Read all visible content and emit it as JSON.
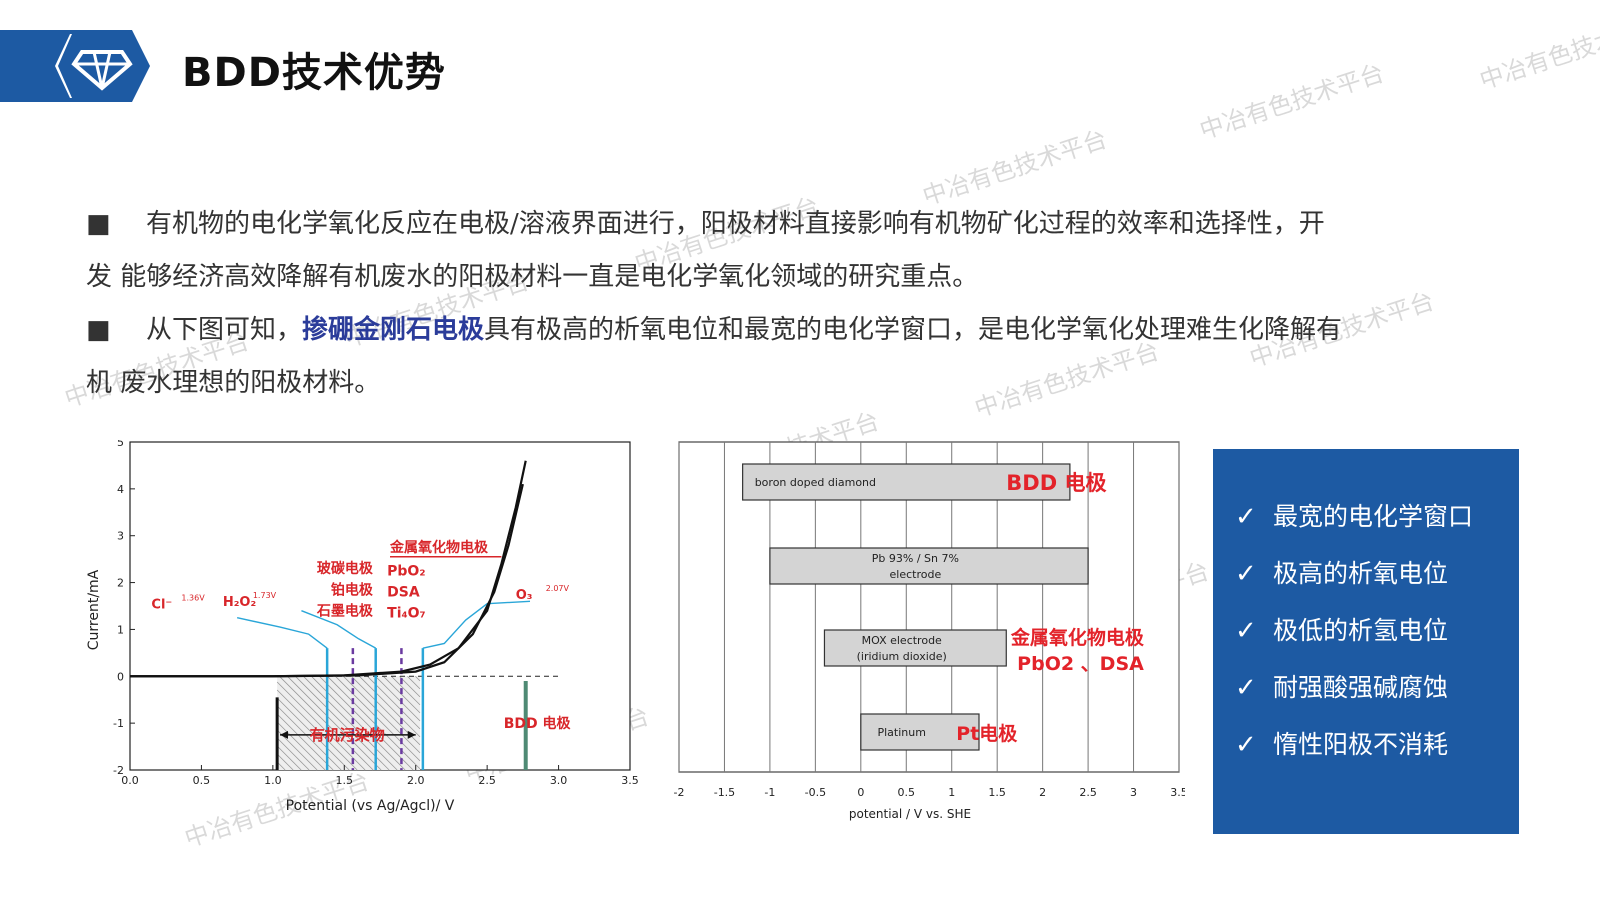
{
  "header": {
    "title": "BDD技术优势",
    "logo_icon": "diamond-logo-icon",
    "accent": "#1d5aa3"
  },
  "watermark": "中冶有色技术平台",
  "paragraphs": [
    {
      "bullet": "■",
      "line1": "有机物的电化学氧化反应在电极/溶液界面进行，阳极材料直接影响有机物矿化过程的效率和选择性，开",
      "line2": "发  能够经济高效降解有机废水的阳极材料一直是电化学氧化领域的研究重点。"
    },
    {
      "bullet": "■",
      "pre": "从下图可知，",
      "highlight": "掺硼金刚石电极",
      "post": "具有极高的析氧电位和最宽的电化学窗口，是电化学氧化处理难生化降解有",
      "line2": "机  废水理想的阳极材料。"
    }
  ],
  "chart_data": [
    {
      "type": "line",
      "xlabel": "Potential (vs Ag/Agcl)/ V",
      "ylabel": "Current/mA",
      "xlim": [
        0.0,
        3.5
      ],
      "ylim": [
        -2,
        5
      ],
      "xticks": [
        "0.0",
        "0.5",
        "1.0",
        "1.5",
        "2.0",
        "2.5",
        "3.0",
        "3.5"
      ],
      "yticks": [
        "-2",
        "-1",
        "0",
        "1",
        "2",
        "3",
        "4",
        "5"
      ],
      "series": [
        {
          "values": [
            [
              0,
              0
            ],
            [
              1.0,
              0
            ],
            [
              1.5,
              0.02
            ],
            [
              1.9,
              0.1
            ],
            [
              2.1,
              0.25
            ],
            [
              2.3,
              0.6
            ],
            [
              2.5,
              1.4
            ],
            [
              2.6,
              2.4
            ],
            [
              2.7,
              3.6
            ],
            [
              2.77,
              4.6
            ]
          ]
        },
        {
          "values": [
            [
              0,
              0
            ],
            [
              1.0,
              0
            ],
            [
              1.6,
              0.02
            ],
            [
              2.0,
              0.1
            ],
            [
              2.2,
              0.3
            ],
            [
              2.4,
              0.9
            ],
            [
              2.55,
              1.8
            ],
            [
              2.65,
              2.8
            ],
            [
              2.75,
              4.1
            ]
          ]
        }
      ],
      "annotations": {
        "species": [
          {
            "label": "Cl⁻",
            "sup": "1.36V"
          },
          {
            "label": "H₂O₂",
            "sup": "1.73V"
          },
          {
            "label": "O₃",
            "sup": "2.07V"
          }
        ],
        "electrode_group_left": [
          "玻碳电极",
          "铂电极",
          "石墨电极"
        ],
        "electrode_group_right": [
          "PbO₂",
          "DSA",
          "Ti₄O₇"
        ],
        "metal_oxide_label": "金属氧化物电极",
        "organic_pollutant_label": "有机污染物",
        "bdd_label": "BDD 电极"
      }
    },
    {
      "type": "bar",
      "xlabel": "potential / V vs. SHE",
      "xlim": [
        -2,
        3.5
      ],
      "xticks": [
        "-2",
        "-1.5",
        "-1",
        "-0.5",
        "0",
        "0.5",
        "1",
        "1.5",
        "2",
        "2.5",
        "3",
        "3.5"
      ],
      "bars": [
        {
          "label_line1": "boron doped diamond",
          "label_line2": "",
          "start": -1.3,
          "end": 2.3,
          "tag": "BDD 电极"
        },
        {
          "label_line1": "Pb 93% / Sn 7%",
          "label_line2": "electrode",
          "start": -1.0,
          "end": 2.5,
          "tag": ""
        },
        {
          "label_line1": "MOX electrode",
          "label_line2": "(iridium dioxide)",
          "start": -0.4,
          "end": 1.6,
          "tag": "金属氧化物电极",
          "tag2": "PbO2 、DSA"
        },
        {
          "label_line1": "Platinum",
          "label_line2": "",
          "start": 0.0,
          "end": 1.3,
          "tag": "Pt电极"
        }
      ]
    }
  ],
  "advantages": {
    "check_icon": "✓",
    "items": [
      "最宽的电化学窗口",
      "极高的析氧电位",
      "极低的析氢电位",
      "耐强酸强碱腐蚀",
      "惰性阳极不消耗"
    ]
  }
}
